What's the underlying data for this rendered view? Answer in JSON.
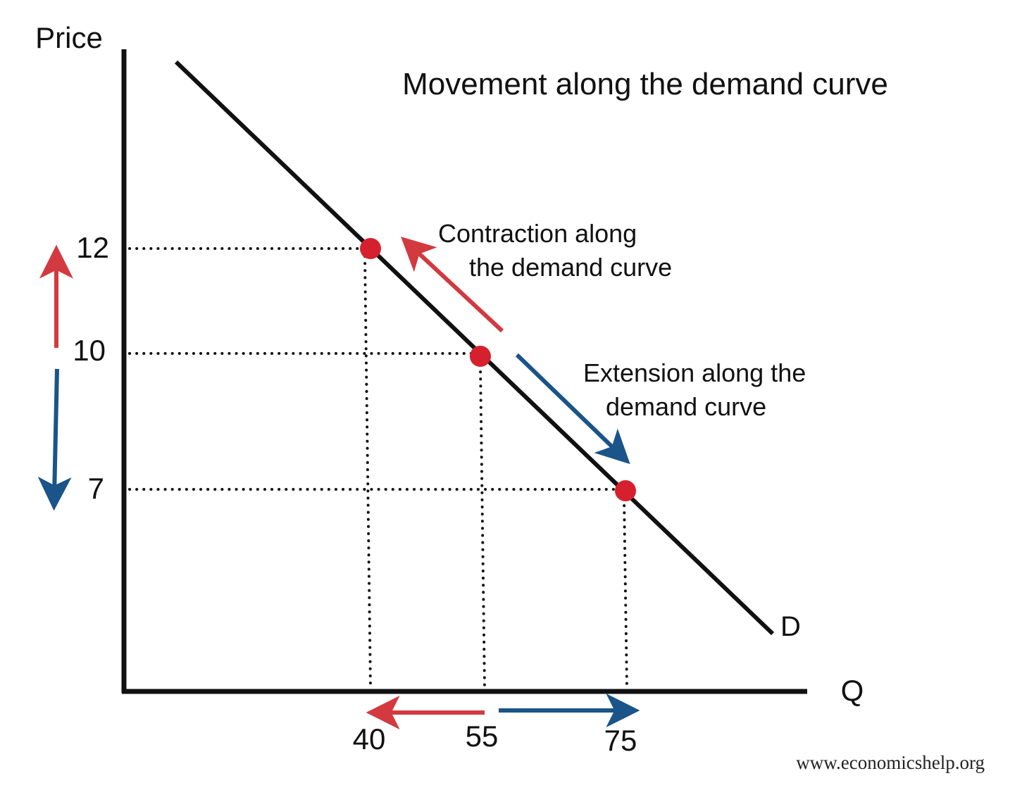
{
  "diagram": {
    "title": "Movement along the demand curve",
    "y_axis_label": "Price",
    "x_axis_label": "Q",
    "curve_label": "D",
    "contraction_label_lines": [
      "Contraction along",
      "the demand curve"
    ],
    "extension_label_lines": [
      "Extension along the",
      "demand curve"
    ],
    "credit": "www.economicshelp.org",
    "colors": {
      "curve": "#111111",
      "points": "#d6202d",
      "contraction": "#d23a3f",
      "extension": "#1a5488"
    }
  },
  "chart_data": {
    "type": "line",
    "title": "Movement along the demand curve",
    "xlabel": "Q",
    "ylabel": "Price",
    "series": [
      {
        "name": "D",
        "points": [
          {
            "x": 40,
            "y": 12
          },
          {
            "x": 55,
            "y": 10
          },
          {
            "x": 75,
            "y": 7
          }
        ]
      }
    ],
    "x_ticks": [
      "40",
      "55",
      "75"
    ],
    "y_ticks": [
      "12",
      "10",
      "7"
    ],
    "annotations": [
      {
        "text": "Contraction along the demand curve",
        "from": {
          "x": 55,
          "y": 10
        },
        "to": {
          "x": 40,
          "y": 12
        },
        "color": "red"
      },
      {
        "text": "Extension along the demand curve",
        "from": {
          "x": 55,
          "y": 10
        },
        "to": {
          "x": 75,
          "y": 7
        },
        "color": "blue"
      }
    ],
    "grid": false
  }
}
